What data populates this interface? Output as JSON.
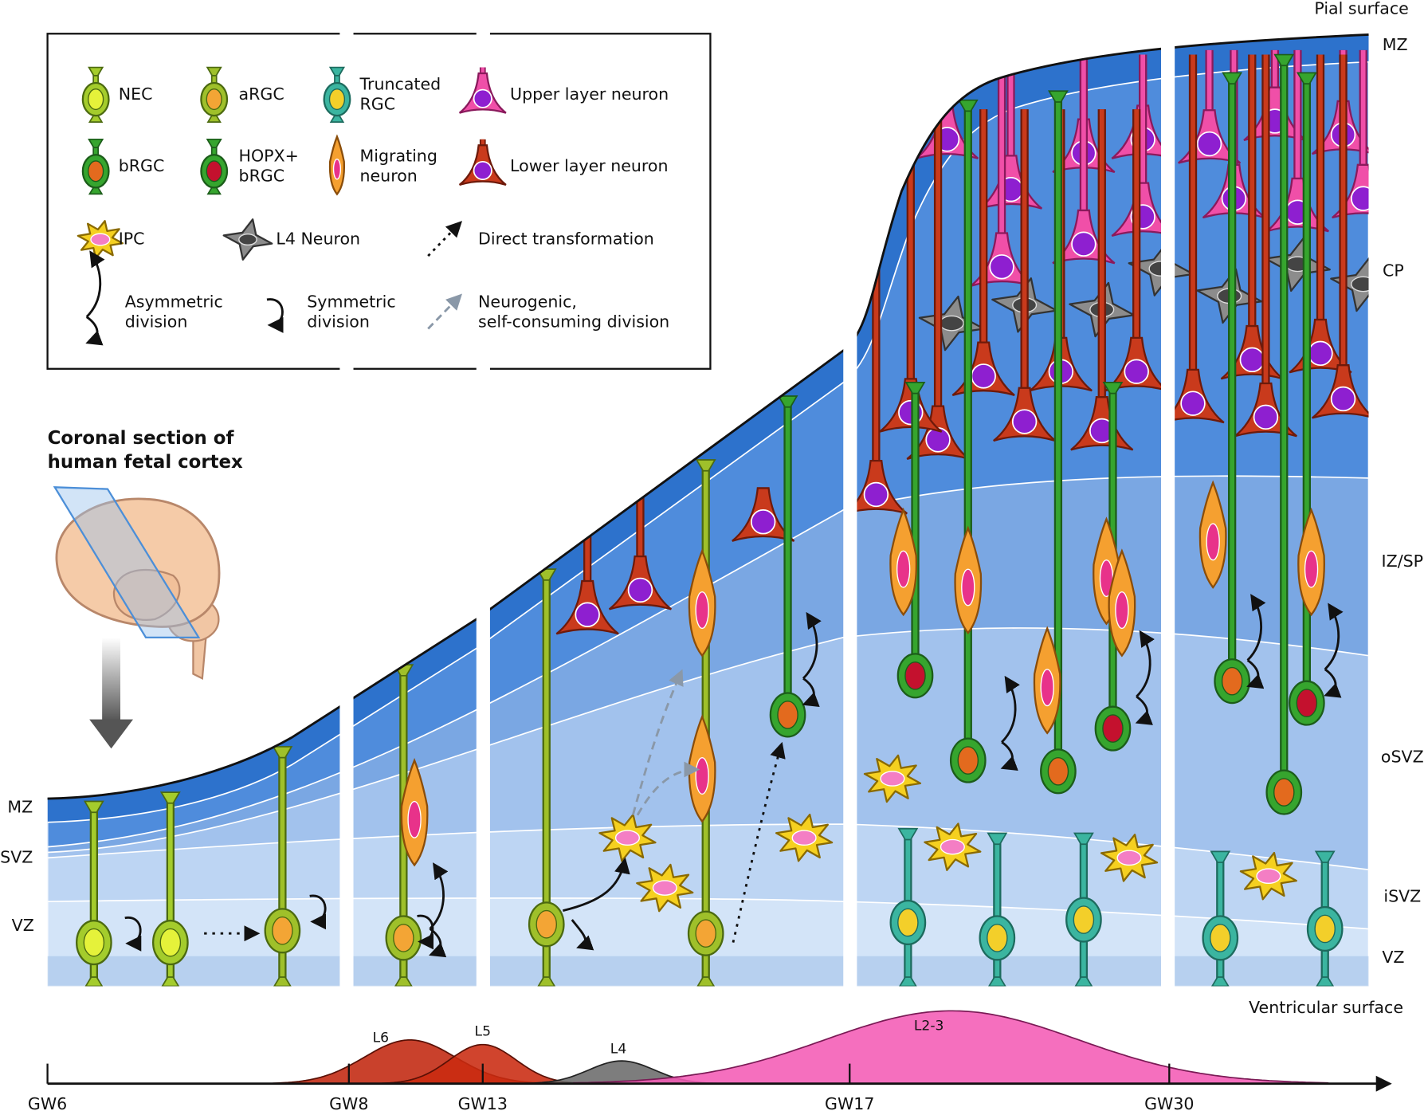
{
  "section_label": [
    "Coronal section of",
    "human fetal cortex"
  ],
  "legend": [
    [
      "NEC"
    ],
    [
      "aRGC"
    ],
    [
      "Truncated",
      "RGC"
    ],
    [
      "Upper layer neuron"
    ],
    [
      "bRGC"
    ],
    [
      "HOPX+",
      "bRGC"
    ],
    [
      "Migrating",
      "neuron"
    ],
    [
      "Lower layer neuron"
    ],
    [
      "IPC"
    ],
    [
      "L4 Neuron"
    ],
    [
      "Direct transformation"
    ],
    [
      "Asymmetric",
      "division"
    ],
    [
      "Symmetric",
      "division"
    ],
    [
      "Neurogenic,",
      "self-consuming division"
    ]
  ],
  "surfaces": {
    "pial": "Pial surface",
    "ventricular": "Ventricular surface"
  },
  "zones_left": [
    "MZ",
    "SVZ",
    "VZ"
  ],
  "zones_right": [
    "MZ",
    "CP",
    "IZ/SP",
    "oSVZ",
    "iSVZ",
    "VZ"
  ],
  "timeline": {
    "ticks": [
      "GW6",
      "GW8",
      "GW13",
      "GW17",
      "GW30"
    ],
    "layers": [
      "L6",
      "L5",
      "L4",
      "L2-3"
    ]
  }
}
